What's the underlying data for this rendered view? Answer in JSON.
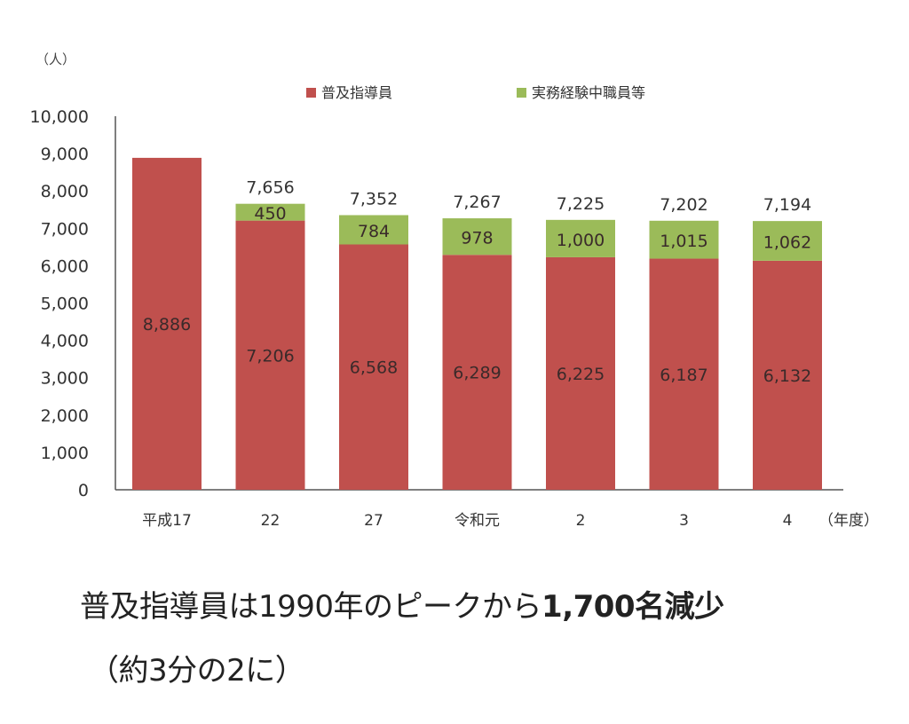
{
  "chart_data": {
    "type": "bar",
    "stacked": true,
    "categories": [
      "平成17",
      "22",
      "27",
      "令和元",
      "2",
      "3",
      "4"
    ],
    "series": [
      {
        "name": "普及指導員",
        "color": "#c0504d",
        "values": [
          8886,
          7206,
          6568,
          6289,
          6225,
          6187,
          6132
        ]
      },
      {
        "name": "実務経験中職員等",
        "color": "#9bbb59",
        "values": [
          0,
          450,
          784,
          978,
          1000,
          1015,
          1062
        ]
      }
    ],
    "segment_labels": [
      [
        "8,886",
        "7,206",
        "6,568",
        "6,289",
        "6,225",
        "6,187",
        "6,132"
      ],
      [
        "",
        "450",
        "784",
        "978",
        "1,000",
        "1,015",
        "1,062"
      ]
    ],
    "totals": [
      null,
      7656,
      7352,
      7267,
      7225,
      7202,
      7194
    ],
    "total_labels": [
      "",
      "7,656",
      "7,352",
      "7,267",
      "7,225",
      "7,202",
      "7,194"
    ],
    "ylim": [
      0,
      10000
    ],
    "yticks": [
      0,
      1000,
      2000,
      3000,
      4000,
      5000,
      6000,
      7000,
      8000,
      9000,
      10000
    ],
    "ytick_labels": [
      "0",
      "1,000",
      "2,000",
      "3,000",
      "4,000",
      "5,000",
      "6,000",
      "7,000",
      "8,000",
      "9,000",
      "10,000"
    ],
    "ylabel": "（人）",
    "xlabel": "（年度）",
    "legend_position": "top",
    "grid": false
  },
  "caption": {
    "line1_prefix": "普及指導員は1990年のピークから",
    "line1_bold": "1,700名減少",
    "line2": "（約3分の2に）"
  }
}
